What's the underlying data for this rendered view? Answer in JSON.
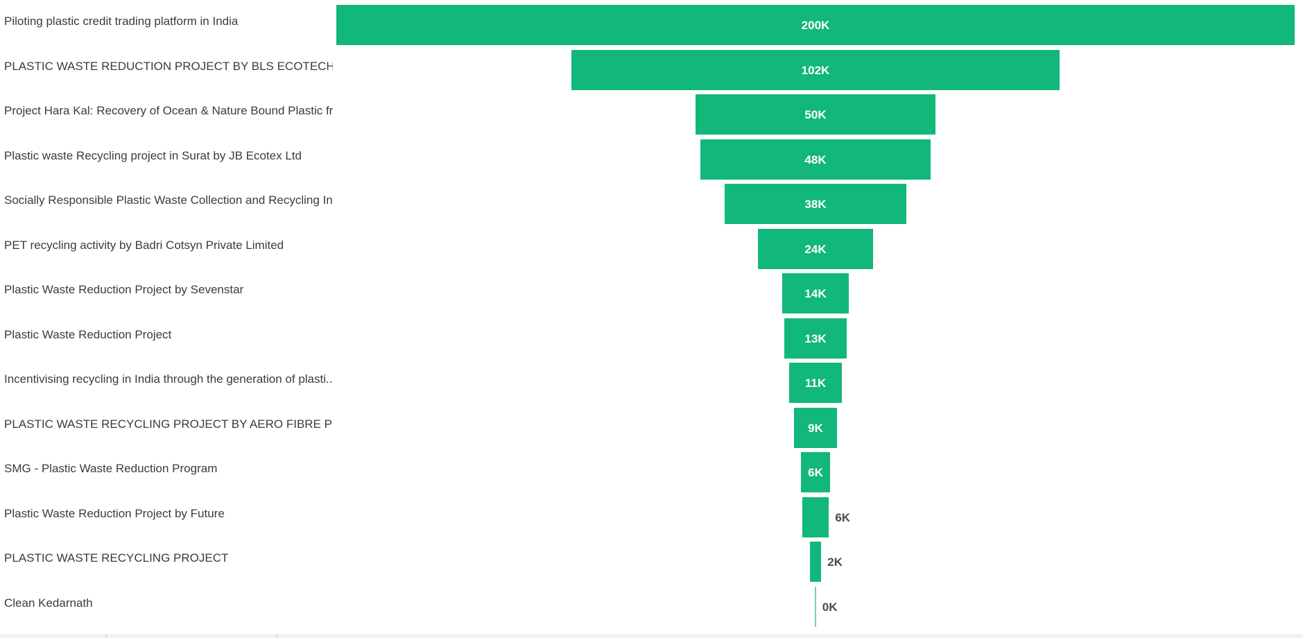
{
  "colors": {
    "bar": "#12b77a",
    "category_text": "#3b3b3b",
    "value_text_inside": "#ffffff",
    "value_text_outside": "#4a4a4a"
  },
  "chart_data": {
    "type": "bar",
    "orientation": "horizontal-funnel",
    "categories": [
      "Piloting plastic credit trading platform in India",
      "PLASTIC WASTE REDUCTION PROJECT BY BLS ECOTECH LTD",
      "Project Hara Kal: Recovery of Ocean & Nature Bound Plastic fr...",
      "Plastic waste Recycling project in Surat by JB Ecotex Ltd",
      "Socially Responsible Plastic Waste Collection and Recycling Ini...",
      "PET recycling activity by Badri Cotsyn Private Limited",
      "Plastic Waste Reduction Project by Sevenstar",
      "Plastic Waste Reduction Project",
      "Incentivising recycling in India through the generation of plasti...",
      "PLASTIC WASTE RECYCLING PROJECT BY AERO FIBRE PRIVATE ...",
      "SMG - Plastic Waste Reduction Program",
      "Plastic Waste Reduction Project by Future",
      "PLASTIC WASTE RECYCLING PROJECT",
      "Clean Kedarnath"
    ],
    "values": [
      200000,
      102000,
      50000,
      48000,
      38000,
      24000,
      14000,
      13000,
      11000,
      9000,
      6200,
      5600,
      2400,
      200
    ],
    "value_labels": [
      "200K",
      "102K",
      "50K",
      "48K",
      "38K",
      "24K",
      "14K",
      "13K",
      "11K",
      "9K",
      "6K",
      "6K",
      "2K",
      "0K"
    ],
    "title": "",
    "xlabel": "",
    "ylabel": "",
    "grid": false,
    "legend": "none"
  }
}
